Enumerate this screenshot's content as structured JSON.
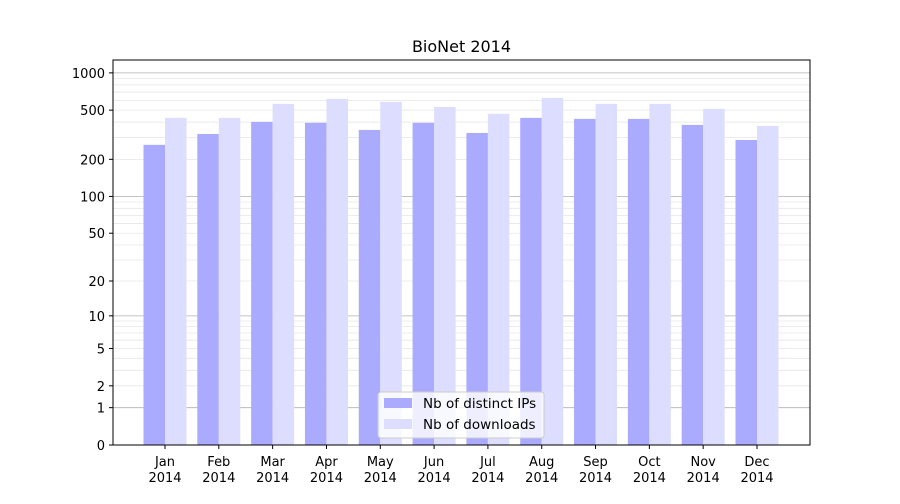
{
  "chart_data": {
    "type": "bar",
    "title": "BioNet 2014",
    "xlabel": "",
    "ylabel": "",
    "yscale": "log(1+y)",
    "ylim": [
      0,
      1270
    ],
    "yticks": [
      0,
      1,
      2,
      5,
      10,
      20,
      50,
      100,
      200,
      500,
      1000
    ],
    "grid": true,
    "legend_position": "lower center",
    "categories": [
      "Jan\n2014",
      "Feb\n2014",
      "Mar\n2014",
      "Apr\n2014",
      "May\n2014",
      "Jun\n2014",
      "Jul\n2014",
      "Aug\n2014",
      "Sep\n2014",
      "Oct\n2014",
      "Nov\n2014",
      "Dec\n2014"
    ],
    "series": [
      {
        "name": "Nb of distinct IPs",
        "color": "#aaaaff",
        "values": [
          262,
          321,
          402,
          395,
          346,
          395,
          327,
          433,
          425,
          425,
          380,
          287
        ]
      },
      {
        "name": "Nb of downloads",
        "color": "#ddddff",
        "values": [
          433,
          433,
          562,
          617,
          583,
          531,
          467,
          628,
          562,
          562,
          512,
          373
        ]
      }
    ]
  }
}
